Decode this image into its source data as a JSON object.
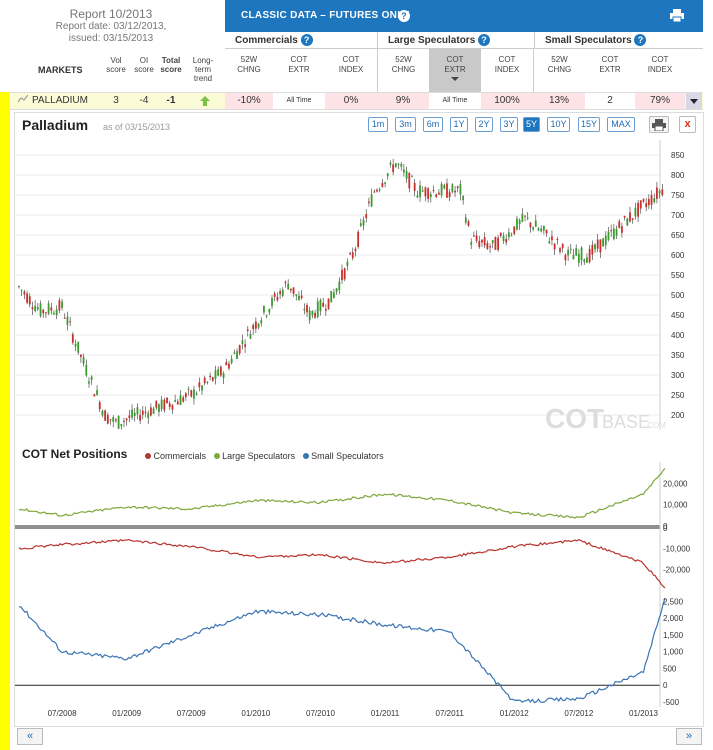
{
  "report": {
    "title": "Report 10/2013",
    "date_line": "Report date: 03/12/2013,",
    "issued_line": "issued: 03/15/2013"
  },
  "markets_header": {
    "markets": "MARKETS",
    "vol": [
      "Vol",
      "score"
    ],
    "oi": [
      "OI",
      "score"
    ],
    "total": [
      "Total",
      "score"
    ],
    "trend": [
      "Long-",
      "term",
      "trend"
    ]
  },
  "banner": {
    "title": "CLASSIC DATA – FUTURES ONLY",
    "help": "?",
    "print_icon": "printer-icon"
  },
  "groups": [
    {
      "label": "Commercials"
    },
    {
      "label": "Large Speculators"
    },
    {
      "label": "Small Speculators"
    }
  ],
  "columns": {
    "chng": [
      "52W",
      "CHNG"
    ],
    "extr": [
      "COT",
      "EXTR"
    ],
    "index": [
      "COT",
      "INDEX"
    ]
  },
  "row": {
    "market": "PALLADIUM",
    "vol": "3",
    "oi": "-4",
    "total": "-1",
    "trend_icon": "arrow-up-icon",
    "comm_chng": "-10%",
    "comm_extr": "All Time",
    "comm_index": "0%",
    "large_chng": "9%",
    "large_extr": "All Time",
    "large_index": "100%",
    "small_chng": "13%",
    "small_extr": "2",
    "small_index": "79%"
  },
  "chart": {
    "title": "Palladium",
    "asof": "as of 03/15/2013",
    "watermark_a": "COT",
    "watermark_b": "BASE",
    ".com": "",
    "watermark_c": ".COM",
    "ranges": [
      "1m",
      "3m",
      "6m",
      "1Y",
      "2Y",
      "3Y",
      "5Y",
      "10Y",
      "15Y",
      "MAX"
    ],
    "active_range": "5Y",
    "close": "x"
  },
  "cot": {
    "title": "COT Net Positions",
    "legend": [
      {
        "name": "Commercials",
        "color": "#b8342f"
      },
      {
        "name": "Large Speculators",
        "color": "#7ea83b"
      },
      {
        "name": "Small Speculators",
        "color": "#3a74b4"
      }
    ]
  },
  "chart_data": [
    {
      "type": "candlestick",
      "title": "Palladium",
      "y_ticks": [
        200,
        250,
        300,
        350,
        400,
        450,
        500,
        550,
        600,
        650,
        700,
        750,
        800,
        850
      ],
      "x_ticks": [
        "07/2008",
        "01/2009",
        "07/2009",
        "01/2010",
        "07/2010",
        "01/2011",
        "07/2011",
        "01/2012",
        "07/2012",
        "01/2013"
      ],
      "series": [
        {
          "x": "2008-03",
          "y": 520
        },
        {
          "x": "2008-05",
          "y": 460
        },
        {
          "x": "2008-07",
          "y": 470
        },
        {
          "x": "2008-09",
          "y": 330
        },
        {
          "x": "2008-11",
          "y": 200
        },
        {
          "x": "2008-12",
          "y": 180
        },
        {
          "x": "2009-02",
          "y": 200
        },
        {
          "x": "2009-04",
          "y": 220
        },
        {
          "x": "2009-07",
          "y": 250
        },
        {
          "x": "2009-10",
          "y": 310
        },
        {
          "x": "2010-01",
          "y": 430
        },
        {
          "x": "2010-04",
          "y": 530
        },
        {
          "x": "2010-06",
          "y": 450
        },
        {
          "x": "2010-08",
          "y": 490
        },
        {
          "x": "2010-10",
          "y": 600
        },
        {
          "x": "2010-12",
          "y": 760
        },
        {
          "x": "2011-02",
          "y": 830
        },
        {
          "x": "2011-04",
          "y": 760
        },
        {
          "x": "2011-06",
          "y": 760
        },
        {
          "x": "2011-08",
          "y": 760
        },
        {
          "x": "2011-09",
          "y": 640
        },
        {
          "x": "2011-11",
          "y": 620
        },
        {
          "x": "2012-02",
          "y": 690
        },
        {
          "x": "2012-04",
          "y": 650
        },
        {
          "x": "2012-06",
          "y": 600
        },
        {
          "x": "2012-08",
          "y": 600
        },
        {
          "x": "2012-10",
          "y": 650
        },
        {
          "x": "2012-12",
          "y": 700
        },
        {
          "x": "2013-03",
          "y": 770
        }
      ]
    },
    {
      "type": "line",
      "title": "COT Net Positions",
      "panels": [
        {
          "name": "Large Speculators",
          "y_ticks": [
            0,
            10000,
            20000
          ],
          "series": [
            {
              "x": "2008-03",
              "y": 8000
            },
            {
              "x": "2008-07",
              "y": 5000
            },
            {
              "x": "2009-01",
              "y": 9000
            },
            {
              "x": "2009-07",
              "y": 8000
            },
            {
              "x": "2010-01",
              "y": 12000
            },
            {
              "x": "2010-07",
              "y": 11000
            },
            {
              "x": "2011-01",
              "y": 15000
            },
            {
              "x": "2011-07",
              "y": 12000
            },
            {
              "x": "2012-01",
              "y": 6000
            },
            {
              "x": "2012-07",
              "y": 4000
            },
            {
              "x": "2013-01",
              "y": 15000
            },
            {
              "x": "2013-03",
              "y": 27000
            }
          ]
        },
        {
          "name": "Commercials",
          "y_ticks": [
            -20000,
            -10000,
            0
          ],
          "series": [
            {
              "x": "2008-03",
              "y": -10000
            },
            {
              "x": "2008-07",
              "y": -8000
            },
            {
              "x": "2009-01",
              "y": -6000
            },
            {
              "x": "2009-07",
              "y": -9000
            },
            {
              "x": "2010-01",
              "y": -14000
            },
            {
              "x": "2010-07",
              "y": -13000
            },
            {
              "x": "2011-01",
              "y": -17000
            },
            {
              "x": "2011-07",
              "y": -14000
            },
            {
              "x": "2012-01",
              "y": -9000
            },
            {
              "x": "2012-07",
              "y": -6000
            },
            {
              "x": "2013-01",
              "y": -17000
            },
            {
              "x": "2013-03",
              "y": -29000
            }
          ]
        },
        {
          "name": "Small Speculators",
          "y_ticks": [
            -500,
            0,
            500,
            1000,
            1500,
            2000,
            2500
          ],
          "series": [
            {
              "x": "2008-03",
              "y": 2400
            },
            {
              "x": "2008-07",
              "y": 1000
            },
            {
              "x": "2009-01",
              "y": 800
            },
            {
              "x": "2009-07",
              "y": 1500
            },
            {
              "x": "2010-01",
              "y": 2200
            },
            {
              "x": "2010-07",
              "y": 2100
            },
            {
              "x": "2011-01",
              "y": 1800
            },
            {
              "x": "2011-07",
              "y": 1600
            },
            {
              "x": "2012-01",
              "y": -500
            },
            {
              "x": "2012-07",
              "y": -400
            },
            {
              "x": "2013-01",
              "y": 400
            },
            {
              "x": "2013-03",
              "y": 2600
            }
          ]
        }
      ]
    }
  ]
}
